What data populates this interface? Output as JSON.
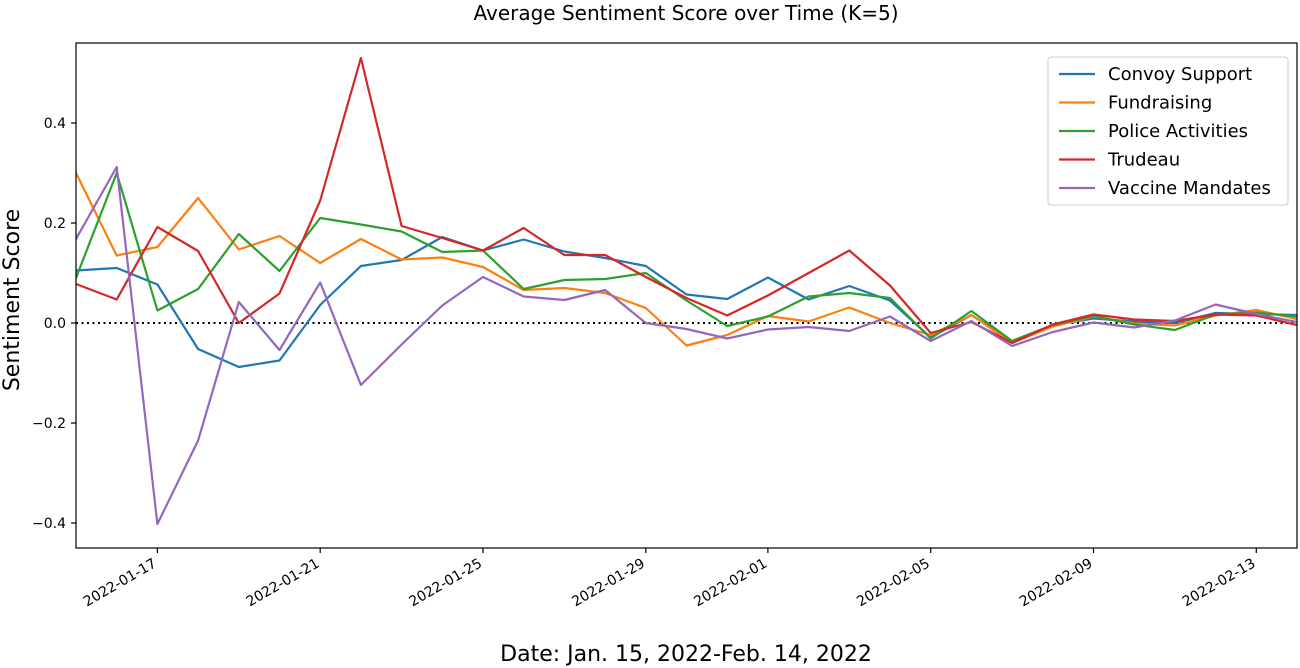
{
  "chart_data": {
    "type": "line",
    "title": "Average Sentiment Score over Time (K=5)",
    "xlabel": "Date: Jan. 15, 2022-Feb. 14, 2022",
    "ylabel": "Sentiment Score",
    "xlim": [
      "2022-01-15",
      "2022-02-14"
    ],
    "ylim": [
      -0.45,
      0.56
    ],
    "yticks": [
      -0.4,
      -0.2,
      0.0,
      0.2,
      0.4
    ],
    "ytick_labels": [
      "−0.4",
      "−0.2",
      "0.0",
      "0.2",
      "0.4"
    ],
    "xticks": [
      "2022-01-17",
      "2022-01-21",
      "2022-01-25",
      "2022-01-29",
      "2022-02-01",
      "2022-02-05",
      "2022-02-09",
      "2022-02-13"
    ],
    "grid": false,
    "legend_position": "upper right",
    "reference_line": {
      "y": 0.0,
      "style": "dotted",
      "color": "#000000"
    },
    "x": [
      "2022-01-15",
      "2022-01-16",
      "2022-01-17",
      "2022-01-18",
      "2022-01-19",
      "2022-01-20",
      "2022-01-21",
      "2022-01-22",
      "2022-01-23",
      "2022-01-24",
      "2022-01-25",
      "2022-01-26",
      "2022-01-27",
      "2022-01-28",
      "2022-01-29",
      "2022-01-30",
      "2022-01-31",
      "2022-02-01",
      "2022-02-02",
      "2022-02-03",
      "2022-02-04",
      "2022-02-05",
      "2022-02-06",
      "2022-02-07",
      "2022-02-08",
      "2022-02-09",
      "2022-02-10",
      "2022-02-11",
      "2022-02-12",
      "2022-02-13",
      "2022-02-14"
    ],
    "series": [
      {
        "name": "Convoy Support",
        "color": "#1f77b4",
        "values": [
          0.105,
          0.11,
          0.077,
          -0.052,
          -0.088,
          -0.075,
          0.036,
          0.114,
          0.126,
          0.172,
          0.145,
          0.167,
          0.143,
          0.13,
          0.114,
          0.057,
          0.048,
          0.091,
          0.047,
          0.074,
          0.045,
          -0.029,
          0.016,
          -0.036,
          -0.004,
          0.009,
          0.003,
          0.0,
          0.02,
          0.018,
          0.016
        ]
      },
      {
        "name": "Fundraising",
        "color": "#ff7f0e",
        "values": [
          0.3,
          0.135,
          0.152,
          0.25,
          0.147,
          0.174,
          0.12,
          0.168,
          0.127,
          0.131,
          0.112,
          0.066,
          0.07,
          0.06,
          0.03,
          -0.045,
          -0.024,
          0.014,
          0.003,
          0.031,
          0.0,
          -0.024,
          0.016,
          -0.04,
          -0.007,
          0.013,
          -0.001,
          -0.005,
          0.015,
          0.026,
          0.008
        ]
      },
      {
        "name": "Police Activities",
        "color": "#2ca02c",
        "values": [
          0.09,
          0.3,
          0.025,
          0.068,
          0.178,
          0.104,
          0.21,
          0.197,
          0.183,
          0.142,
          0.145,
          0.068,
          0.086,
          0.088,
          0.1,
          0.045,
          -0.006,
          0.013,
          0.053,
          0.06,
          0.05,
          -0.031,
          0.024,
          -0.036,
          -0.004,
          0.014,
          -0.003,
          -0.014,
          0.017,
          0.021,
          0.013
        ]
      },
      {
        "name": "Trudeau",
        "color": "#d62728",
        "values": [
          0.078,
          0.047,
          0.192,
          0.144,
          0.0,
          0.059,
          0.245,
          0.53,
          0.194,
          0.17,
          0.145,
          0.19,
          0.136,
          0.136,
          0.092,
          0.05,
          0.015,
          0.055,
          0.1,
          0.145,
          0.075,
          -0.02,
          0.002,
          -0.04,
          -0.003,
          0.017,
          0.007,
          0.004,
          0.017,
          0.015,
          -0.004
        ]
      },
      {
        "name": "Vaccine Mandates",
        "color": "#9467bd",
        "values": [
          0.168,
          0.312,
          -0.402,
          -0.235,
          0.042,
          -0.054,
          0.081,
          -0.124,
          -0.043,
          0.035,
          0.092,
          0.053,
          0.046,
          0.066,
          0.0,
          -0.012,
          -0.031,
          -0.013,
          -0.008,
          -0.016,
          0.013,
          -0.036,
          0.004,
          -0.046,
          -0.018,
          0.001,
          -0.009,
          0.005,
          0.037,
          0.018,
          0.002
        ]
      }
    ]
  }
}
